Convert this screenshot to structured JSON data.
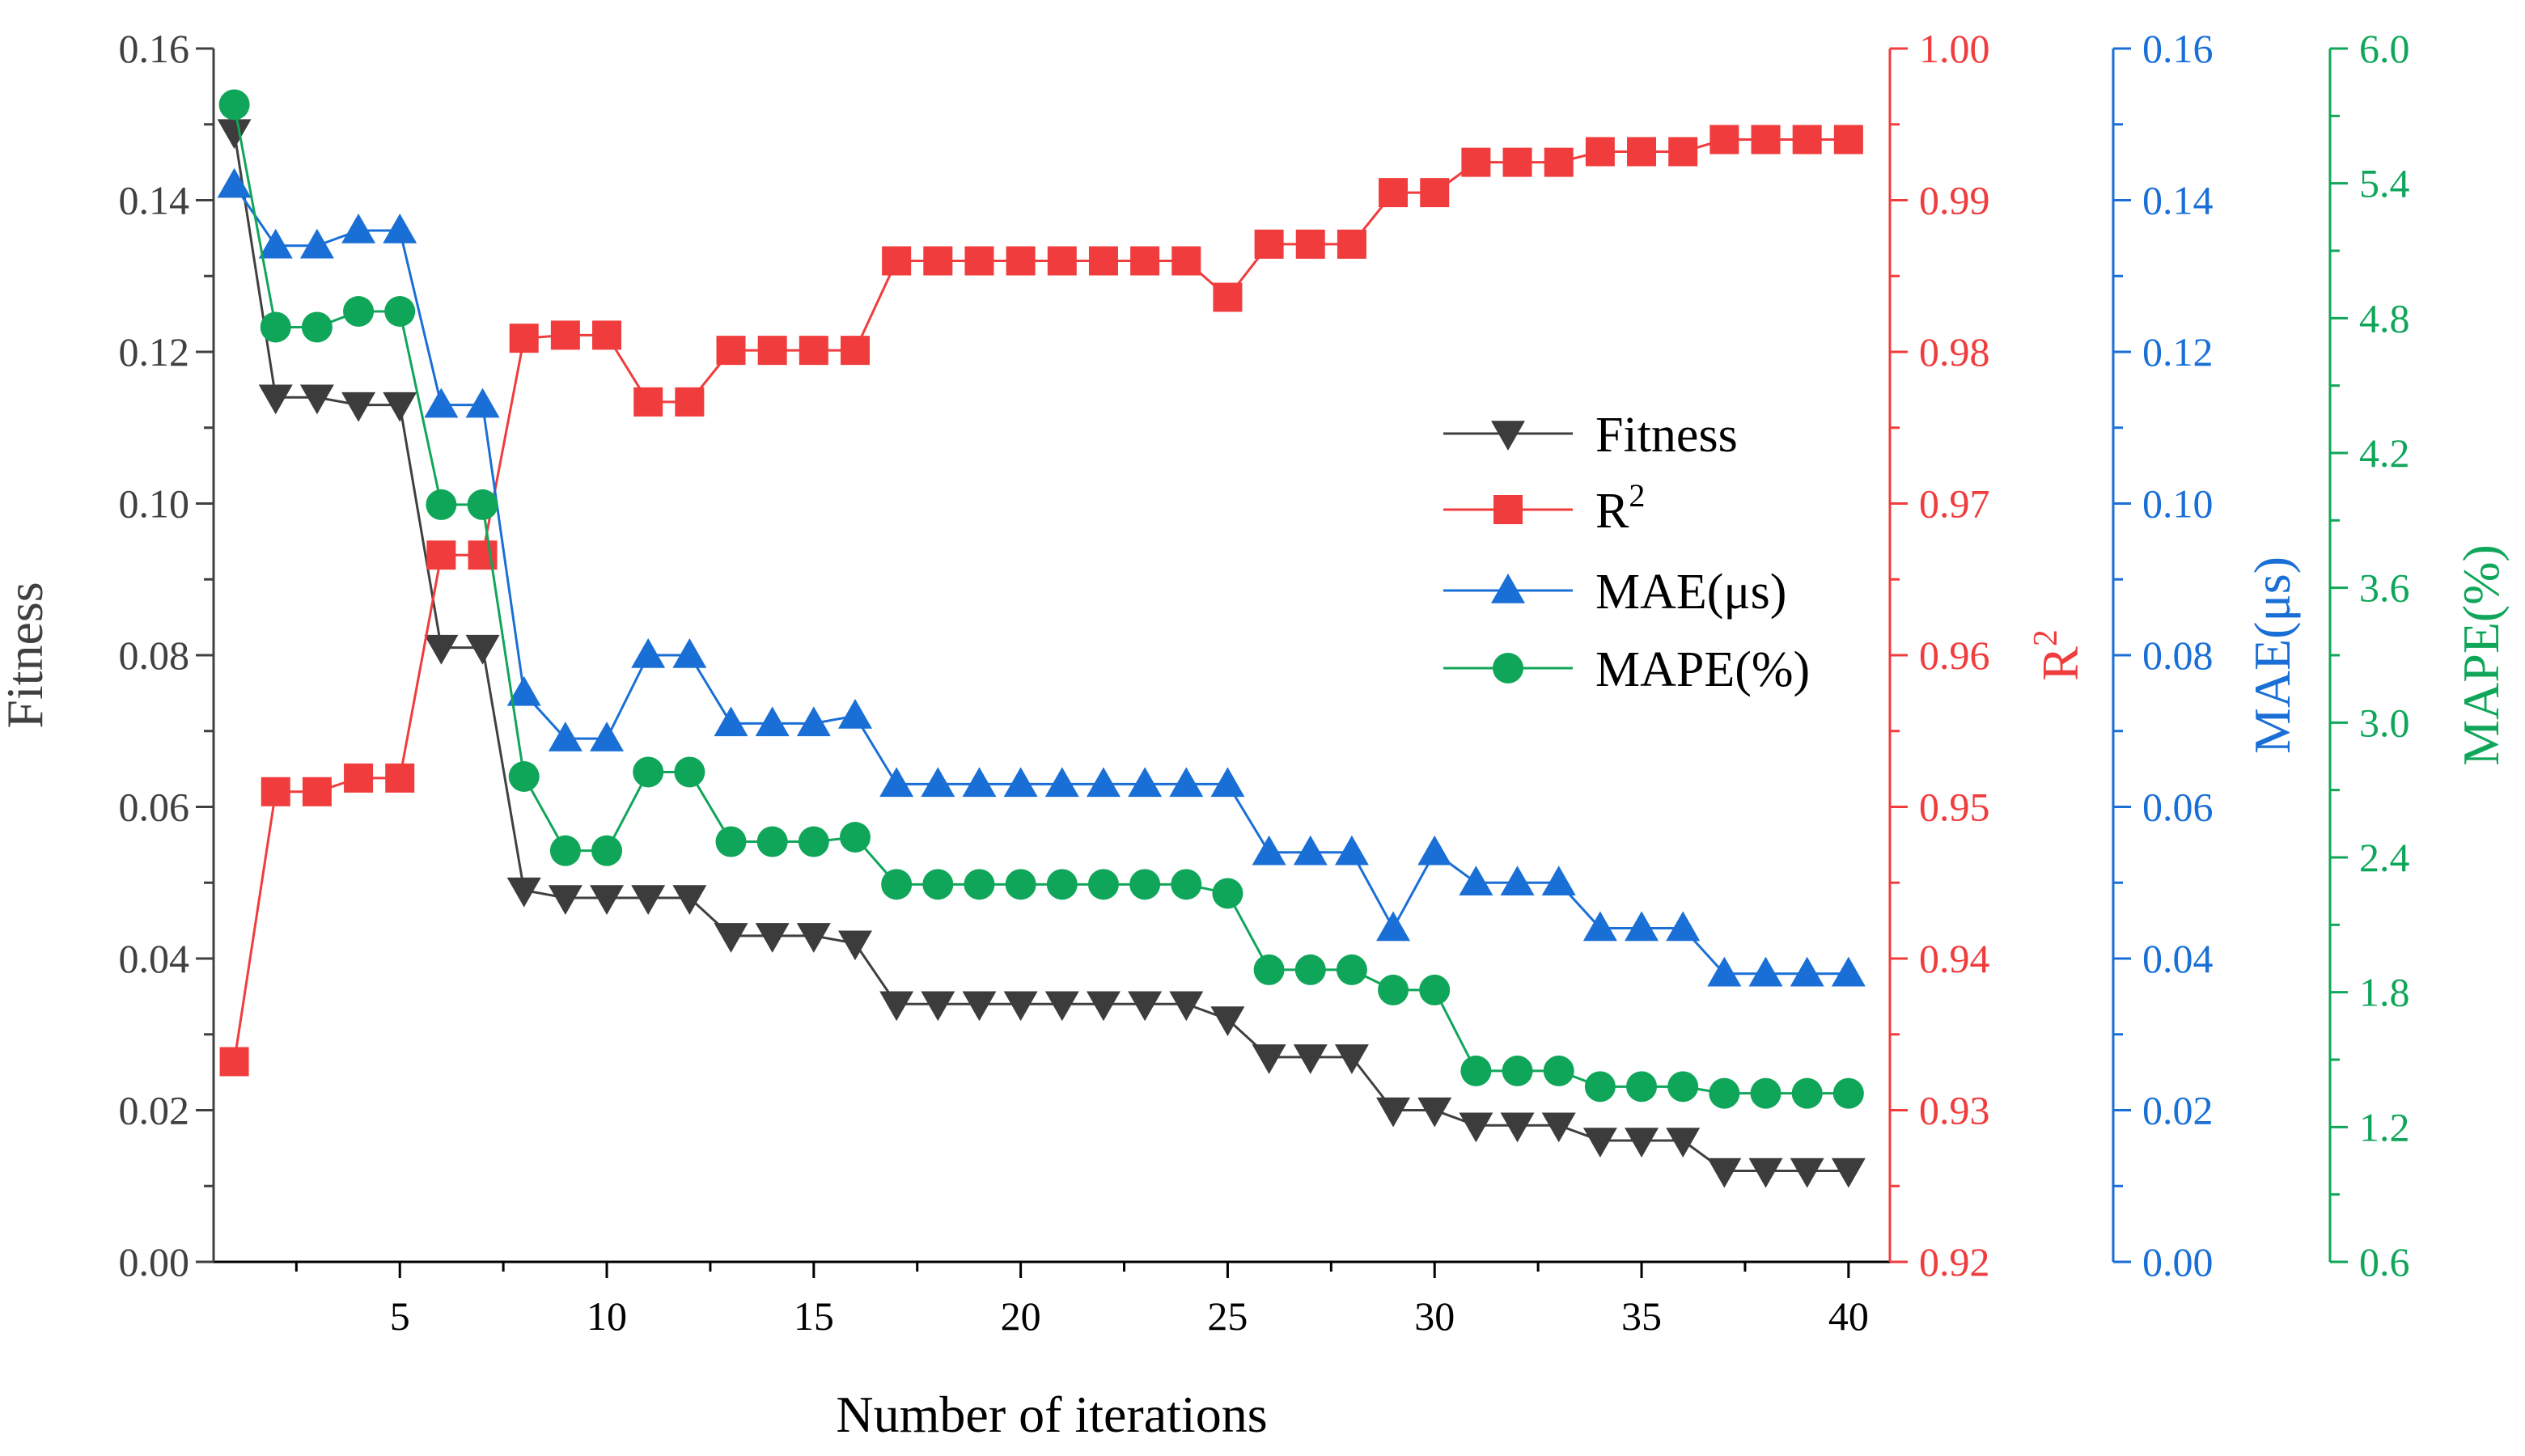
{
  "chart_data": {
    "type": "line",
    "title": "",
    "xlabel": "Number of iterations",
    "xlim": [
      0.5,
      41
    ],
    "xticks": [
      5,
      10,
      15,
      20,
      25,
      30,
      35,
      40
    ],
    "x": [
      1,
      2,
      3,
      4,
      5,
      6,
      7,
      8,
      9,
      10,
      11,
      12,
      13,
      14,
      15,
      16,
      17,
      18,
      19,
      20,
      21,
      22,
      23,
      24,
      25,
      26,
      27,
      28,
      29,
      30,
      31,
      32,
      33,
      34,
      35,
      36,
      37,
      38,
      39,
      40
    ],
    "axes": [
      {
        "id": "fitness",
        "label": "Fitness",
        "color": "#404040",
        "range": [
          0,
          0.16
        ],
        "ticks": [
          "0.00",
          "0.02",
          "0.04",
          "0.06",
          "0.08",
          "0.10",
          "0.12",
          "0.14",
          "0.16"
        ]
      },
      {
        "id": "r2",
        "label": "R",
        "label_sup": "2",
        "color": "#F03C3C",
        "range": [
          0.92,
          1.0
        ],
        "ticks": [
          "0.92",
          "0.93",
          "0.94",
          "0.95",
          "0.96",
          "0.97",
          "0.98",
          "0.99",
          "1.00"
        ]
      },
      {
        "id": "mae",
        "label": "MAE(μs)",
        "color": "#1A6FD6",
        "range": [
          0,
          0.16
        ],
        "ticks": [
          "0.00",
          "0.02",
          "0.04",
          "0.06",
          "0.08",
          "0.10",
          "0.12",
          "0.14",
          "0.16"
        ]
      },
      {
        "id": "mape",
        "label": "MAPE(%)",
        "color": "#10A65A",
        "range": [
          0.6,
          6.0
        ],
        "ticks": [
          "0.6",
          "1.2",
          "1.8",
          "2.4",
          "3.0",
          "3.6",
          "4.2",
          "4.8",
          "5.4",
          "6.0"
        ]
      }
    ],
    "series": [
      {
        "name": "Fitness",
        "axis": "fitness",
        "marker": "triangle-down",
        "color": "#404040",
        "marker_color": "#3c3c3c",
        "values": [
          0.149,
          0.114,
          0.114,
          0.113,
          0.113,
          0.081,
          0.081,
          0.049,
          0.048,
          0.048,
          0.048,
          0.048,
          0.043,
          0.043,
          0.043,
          0.042,
          0.034,
          0.034,
          0.034,
          0.034,
          0.034,
          0.034,
          0.034,
          0.034,
          0.032,
          0.027,
          0.027,
          0.027,
          0.02,
          0.02,
          0.018,
          0.018,
          0.018,
          0.016,
          0.016,
          0.016,
          0.012,
          0.012,
          0.012,
          0.012
        ]
      },
      {
        "name": "R",
        "name_sup": "2",
        "axis": "r2",
        "marker": "square",
        "color": "#F03C3C",
        "marker_color": "#F03C3C",
        "values": [
          0.9332,
          0.951,
          0.951,
          0.9519,
          0.9519,
          0.9666,
          0.9666,
          0.9809,
          0.9811,
          0.9811,
          0.9767,
          0.9767,
          0.9801,
          0.9801,
          0.9801,
          0.9801,
          0.986,
          0.986,
          0.986,
          0.986,
          0.986,
          0.986,
          0.986,
          0.986,
          0.9836,
          0.9871,
          0.9871,
          0.9871,
          0.9905,
          0.9905,
          0.9925,
          0.9925,
          0.9925,
          0.9932,
          0.9932,
          0.9932,
          0.994,
          0.994,
          0.994,
          0.994
        ]
      },
      {
        "name": "MAE(μs)",
        "axis": "mae",
        "marker": "triangle-up",
        "color": "#1A6FD6",
        "marker_color": "#1A6FD6",
        "values": [
          0.142,
          0.134,
          0.134,
          0.136,
          0.136,
          0.113,
          0.113,
          0.075,
          0.069,
          0.069,
          0.08,
          0.08,
          0.071,
          0.071,
          0.071,
          0.072,
          0.063,
          0.063,
          0.063,
          0.063,
          0.063,
          0.063,
          0.063,
          0.063,
          0.063,
          0.054,
          0.054,
          0.054,
          0.044,
          0.054,
          0.05,
          0.05,
          0.05,
          0.044,
          0.044,
          0.044,
          0.038,
          0.038,
          0.038,
          0.038
        ]
      },
      {
        "name": "MAPE(%)",
        "axis": "mape",
        "marker": "circle",
        "color": "#10A65A",
        "marker_color": "#10A65A",
        "values": [
          5.75,
          4.76,
          4.76,
          4.83,
          4.83,
          3.97,
          3.97,
          2.76,
          2.43,
          2.43,
          2.78,
          2.78,
          2.47,
          2.47,
          2.47,
          2.49,
          2.28,
          2.28,
          2.28,
          2.28,
          2.28,
          2.28,
          2.28,
          2.28,
          2.24,
          1.9,
          1.9,
          1.9,
          1.81,
          1.81,
          1.45,
          1.45,
          1.45,
          1.38,
          1.38,
          1.38,
          1.35,
          1.35,
          1.35,
          1.35
        ]
      }
    ],
    "legend": {
      "placement": "upper-middle-right"
    }
  }
}
